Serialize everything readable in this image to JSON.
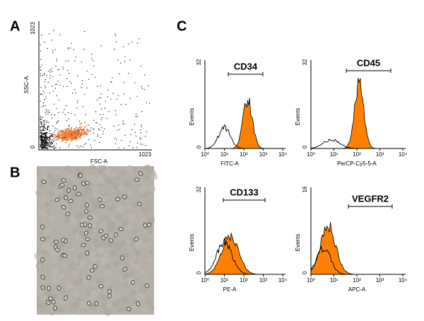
{
  "panels": {
    "A": {
      "label": "A",
      "x_label": "FSC-A",
      "y_label": "SSC-A",
      "x_ticks": [
        "1023"
      ],
      "y_ticks": [
        "0",
        "1023"
      ]
    },
    "B": {
      "label": "B"
    },
    "C": {
      "label": "C",
      "histograms": [
        {
          "marker": "CD34",
          "x_label": "FITC-A",
          "y_label": "Events",
          "y_ticks": [
            "0",
            "32"
          ],
          "x_ticks": [
            "10⁰",
            "10¹",
            "10²",
            "10³",
            "10⁴"
          ]
        },
        {
          "marker": "CD45",
          "x_label": "PerCP-Cy5-5-A",
          "y_label": "Events",
          "y_ticks": [
            "0",
            "32"
          ],
          "x_ticks": [
            "10⁰",
            "10¹",
            "10²",
            "10³",
            "10⁴"
          ]
        },
        {
          "marker": "CD133",
          "x_label": "PE-A",
          "y_label": "Events",
          "y_ticks": [
            "0",
            "32"
          ],
          "x_ticks": [
            "10⁰",
            "10¹",
            "10²",
            "10³",
            "10⁴"
          ]
        },
        {
          "marker": "VEGFR2",
          "x_label": "APC-A",
          "y_label": "Events",
          "y_ticks": [
            "0",
            "16"
          ],
          "x_ticks": [
            "10⁰",
            "10¹",
            "10²",
            "10³",
            "10⁴"
          ]
        }
      ]
    }
  }
}
